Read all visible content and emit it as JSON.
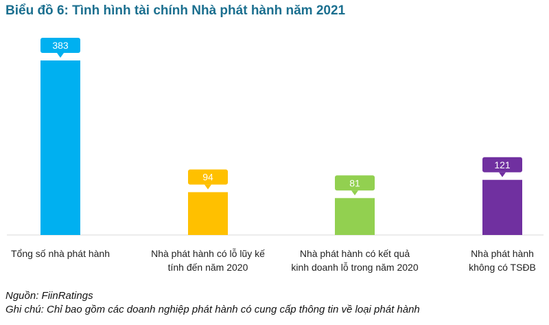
{
  "title": "Biểu đồ 6: Tình hình tài chính Nhà phát hành năm 2021",
  "source_note": "Nguồn: FiinRatings",
  "footnote": "Ghi chú: Chỉ bao gồm các doanh nghiệp phát hành có cung cấp thông tin về loại phát hành",
  "chart_data": {
    "type": "bar",
    "title": "Biểu đồ 6: Tình hình tài chính Nhà phát hành năm 2021",
    "xlabel": "",
    "ylabel": "",
    "ylim": [
      0,
      383
    ],
    "grid": false,
    "legend": "none",
    "categories": [
      [
        "Tổng số nhà phát hành"
      ],
      [
        "Nhà phát hành có lỗ lũy kế",
        "tính đến năm 2020"
      ],
      [
        "Nhà phát hành có kết quả",
        "kinh doanh lỗ trong năm 2020"
      ],
      [
        "Nhà phát hành",
        "không có TSĐB"
      ]
    ],
    "values": [
      383,
      94,
      81,
      121
    ],
    "data_labels": [
      "383",
      "94",
      "81",
      "121"
    ],
    "colors": [
      "#00b0f0",
      "#ffc000",
      "#92d050",
      "#7030a0"
    ]
  }
}
